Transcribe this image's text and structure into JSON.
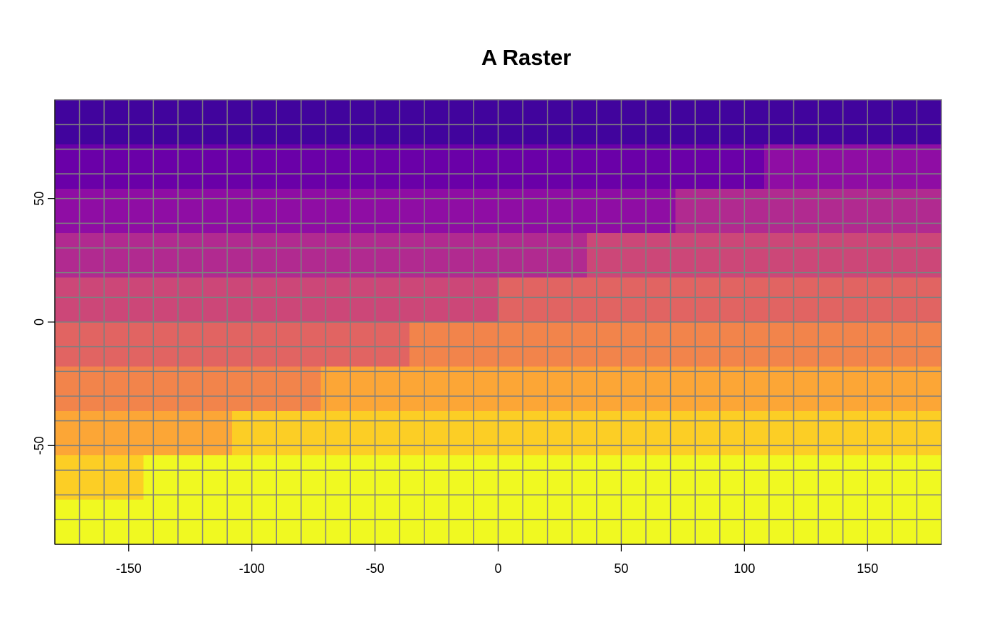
{
  "chart_data": {
    "type": "heatmap",
    "title": "A Raster",
    "xlabel": "",
    "ylabel": "",
    "xlim": [
      -180,
      180
    ],
    "ylim": [
      -90,
      90
    ],
    "x_ticks": [
      -150,
      -100,
      -50,
      0,
      50,
      100,
      150
    ],
    "y_ticks": [
      -50,
      0,
      50
    ],
    "x_tick_labels": [
      "-150",
      "-100",
      "-50",
      "0",
      "50",
      "100",
      "150"
    ],
    "y_tick_labels": [
      "-50",
      "0",
      "50"
    ],
    "grid": true,
    "grid_color": "#7f7f7f",
    "raster": {
      "ncols": 10,
      "nrows": 10,
      "xmin": -180,
      "xmax": 180,
      "ymin": -90,
      "ymax": 90,
      "description_order": "rows top (north) to bottom (south), columns west to east",
      "values": [
        [
          1,
          1,
          1,
          1,
          1,
          1,
          1,
          1,
          1,
          1
        ],
        [
          2,
          2,
          2,
          2,
          2,
          2,
          2,
          2,
          3,
          3
        ],
        [
          3,
          3,
          3,
          3,
          3,
          3,
          3,
          4,
          4,
          4
        ],
        [
          4,
          4,
          4,
          4,
          4,
          4,
          5,
          5,
          5,
          5
        ],
        [
          5,
          5,
          5,
          5,
          5,
          6,
          6,
          6,
          6,
          6
        ],
        [
          6,
          6,
          6,
          6,
          7,
          7,
          7,
          7,
          7,
          7
        ],
        [
          7,
          7,
          7,
          8,
          8,
          8,
          8,
          8,
          8,
          8
        ],
        [
          8,
          8,
          9,
          9,
          9,
          9,
          9,
          9,
          9,
          9
        ],
        [
          9,
          10,
          10,
          10,
          10,
          10,
          10,
          10,
          10,
          10
        ],
        [
          10,
          10,
          10,
          10,
          10,
          10,
          10,
          10,
          10,
          10
        ]
      ]
    },
    "palette": [
      "#0d0887",
      "#41049d",
      "#6a00a8",
      "#8f0da4",
      "#b12a90",
      "#cc4778",
      "#e16462",
      "#f2844b",
      "#fca636",
      "#fcce25",
      "#f0f921"
    ],
    "grid_lines": {
      "x": [
        -170,
        -160,
        -150,
        -140,
        -130,
        -120,
        -110,
        -100,
        -90,
        -80,
        -70,
        -60,
        -50,
        -40,
        -30,
        -20,
        -10,
        0,
        10,
        20,
        30,
        40,
        50,
        60,
        70,
        80,
        90,
        100,
        110,
        120,
        130,
        140,
        150,
        160,
        170
      ],
      "y": [
        -80,
        -70,
        -60,
        -50,
        -40,
        -30,
        -20,
        -10,
        0,
        10,
        20,
        30,
        40,
        50,
        60,
        70,
        80
      ]
    }
  }
}
